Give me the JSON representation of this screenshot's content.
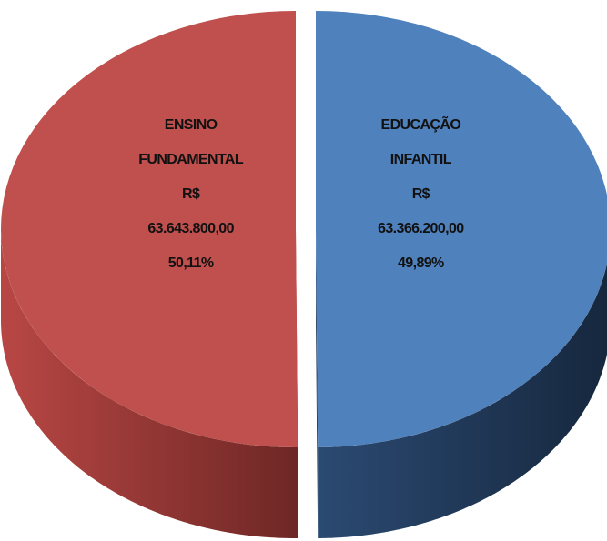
{
  "chart_data": {
    "type": "pie3d",
    "categories": [
      "ENSINO FUNDAMENTAL",
      "EDUCAÇÃO INFANTIL"
    ],
    "values": [
      50.11,
      49.89
    ],
    "value_labels": [
      "50,11%",
      "49,89%"
    ],
    "currency": "R$",
    "amounts": [
      63643800,
      63366200
    ],
    "amount_labels": [
      "63.643.800,00",
      "63.366.200,00"
    ],
    "colors": [
      "#c0504d",
      "#4f81bd"
    ]
  }
}
